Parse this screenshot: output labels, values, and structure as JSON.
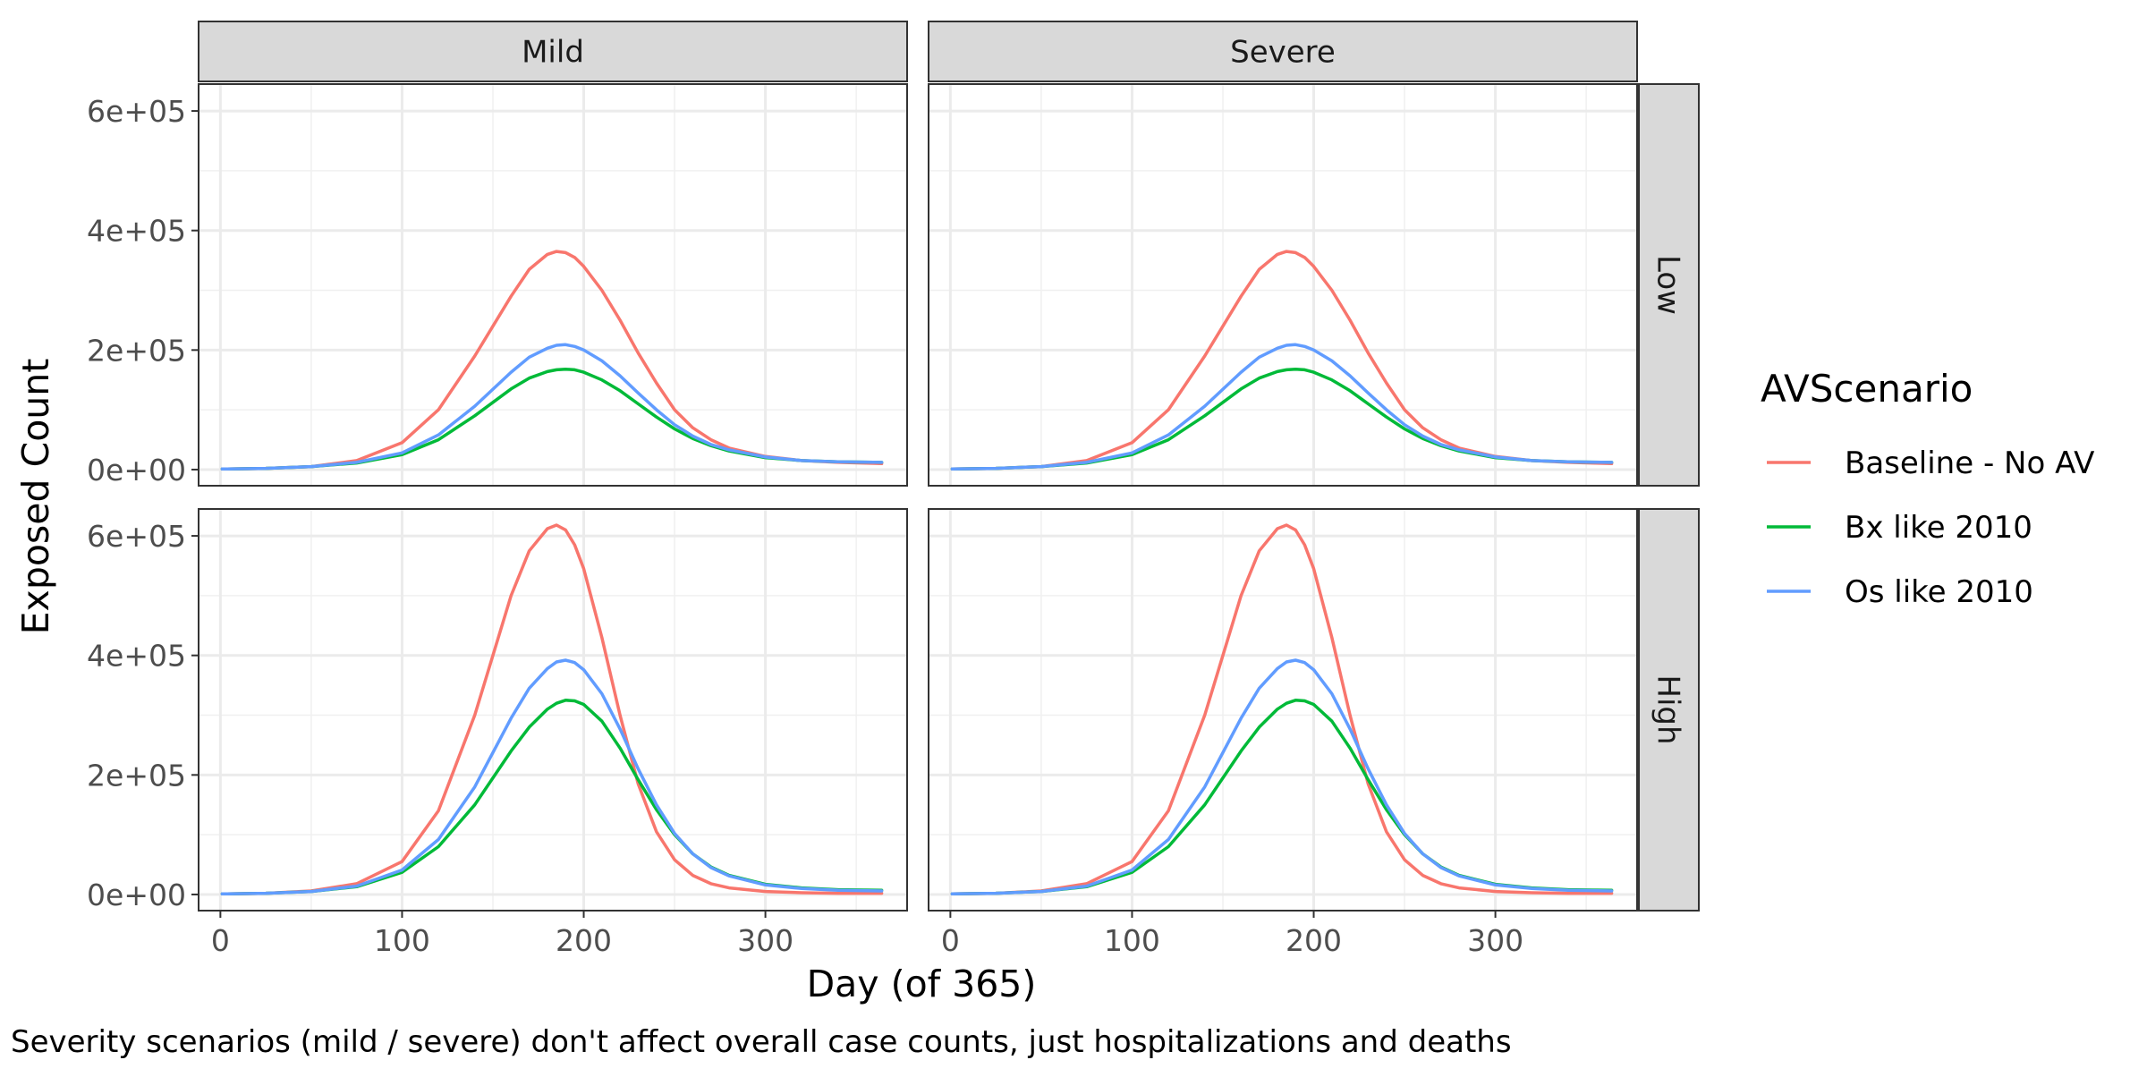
{
  "chart_data": {
    "type": "line",
    "xlabel": "Day (of 365)",
    "ylabel": "Exposed Count",
    "caption": "Severity scenarios (mild / severe) don't affect overall case counts, just hospitalizations and deaths",
    "xlim": [
      -12,
      378
    ],
    "ylim": [
      -27000,
      645000
    ],
    "x_ticks": [
      0,
      100,
      200,
      300
    ],
    "x_tick_labels": [
      "0",
      "100",
      "200",
      "300"
    ],
    "y_ticks": [
      0,
      200000,
      400000,
      600000
    ],
    "y_tick_labels": [
      "0e+00",
      "2e+05",
      "4e+05",
      "6e+05"
    ],
    "grid": true,
    "column_facets": [
      "Mild",
      "Severe"
    ],
    "row_facets": [
      "Low",
      "High"
    ],
    "legend": {
      "title": "AVScenario",
      "position": "right",
      "entries": [
        "Baseline - No AV",
        "Bx like 2010",
        "Os like 2010"
      ]
    },
    "colors": {
      "Baseline - No AV": "#F8766D",
      "Bx like 2010": "#00BA38",
      "Os like 2010": "#619CFF"
    },
    "x": [
      1,
      25,
      50,
      75,
      100,
      120,
      140,
      160,
      170,
      180,
      185,
      190,
      195,
      200,
      210,
      220,
      230,
      240,
      250,
      260,
      270,
      280,
      300,
      320,
      340,
      364
    ],
    "panels": [
      {
        "col": "Mild",
        "row": "Low",
        "series": [
          {
            "name": "Baseline - No AV",
            "values": [
              1000,
              2000,
              5000,
              15000,
              45000,
              100000,
              190000,
              290000,
              335000,
              360000,
              365000,
              363000,
              355000,
              340000,
              300000,
              250000,
              195000,
              145000,
              100000,
              70000,
              50000,
              36000,
              22000,
              15000,
              12000,
              10000
            ]
          },
          {
            "name": "Bx like 2010",
            "values": [
              1000,
              2000,
              5000,
              11000,
              25000,
              50000,
              90000,
              135000,
              153000,
              164000,
              167000,
              168000,
              167000,
              163000,
              150000,
              132000,
              110000,
              88000,
              68000,
              52000,
              40000,
              31000,
              20000,
              15000,
              13000,
              12000
            ]
          },
          {
            "name": "Os like 2010",
            "values": [
              1000,
              2000,
              5000,
              12000,
              28000,
              58000,
              106000,
              163000,
              188000,
              203000,
              208000,
              209000,
              206000,
              200000,
              182000,
              157000,
              128000,
              100000,
              75000,
              56000,
              42000,
              33000,
              21000,
              15000,
              13000,
              12000
            ]
          }
        ]
      },
      {
        "col": "Severe",
        "row": "Low",
        "series": [
          {
            "name": "Baseline - No AV",
            "values": [
              1000,
              2000,
              5000,
              15000,
              45000,
              100000,
              190000,
              290000,
              335000,
              360000,
              365000,
              363000,
              355000,
              340000,
              300000,
              250000,
              195000,
              145000,
              100000,
              70000,
              50000,
              36000,
              22000,
              15000,
              12000,
              10000
            ]
          },
          {
            "name": "Bx like 2010",
            "values": [
              1000,
              2000,
              5000,
              11000,
              25000,
              50000,
              90000,
              135000,
              153000,
              164000,
              167000,
              168000,
              167000,
              163000,
              150000,
              132000,
              110000,
              88000,
              68000,
              52000,
              40000,
              31000,
              20000,
              15000,
              13000,
              12000
            ]
          },
          {
            "name": "Os like 2010",
            "values": [
              1000,
              2000,
              5000,
              12000,
              28000,
              58000,
              106000,
              163000,
              188000,
              203000,
              208000,
              209000,
              206000,
              200000,
              182000,
              157000,
              128000,
              100000,
              75000,
              56000,
              42000,
              33000,
              21000,
              15000,
              13000,
              12000
            ]
          }
        ]
      },
      {
        "col": "Mild",
        "row": "High",
        "series": [
          {
            "name": "Baseline - No AV",
            "values": [
              1000,
              2000,
              6000,
              18000,
              55000,
              140000,
              300000,
              500000,
              575000,
              612000,
              618000,
              610000,
              585000,
              545000,
              430000,
              300000,
              185000,
              105000,
              58000,
              32000,
              18000,
              11000,
              5000,
              3000,
              2000,
              2000
            ]
          },
          {
            "name": "Bx like 2010",
            "values": [
              1000,
              2000,
              5000,
              13000,
              37000,
              80000,
              150000,
              240000,
              280000,
              310000,
              320000,
              325000,
              324000,
              318000,
              290000,
              245000,
              192000,
              142000,
              100000,
              68000,
              46000,
              32000,
              17000,
              11000,
              8000,
              7000
            ]
          },
          {
            "name": "Os like 2010",
            "values": [
              1000,
              2000,
              5000,
              14000,
              41000,
              92000,
              180000,
              295000,
              345000,
              378000,
              389000,
              392000,
              388000,
              376000,
              336000,
              277000,
              210000,
              150000,
              102000,
              68000,
              45000,
              31000,
              16000,
              10000,
              7000,
              6000
            ]
          }
        ]
      },
      {
        "col": "Severe",
        "row": "High",
        "series": [
          {
            "name": "Baseline - No AV",
            "values": [
              1000,
              2000,
              6000,
              18000,
              55000,
              140000,
              300000,
              500000,
              575000,
              612000,
              618000,
              610000,
              585000,
              545000,
              430000,
              300000,
              185000,
              105000,
              58000,
              32000,
              18000,
              11000,
              5000,
              3000,
              2000,
              2000
            ]
          },
          {
            "name": "Bx like 2010",
            "values": [
              1000,
              2000,
              5000,
              13000,
              37000,
              80000,
              150000,
              240000,
              280000,
              310000,
              320000,
              325000,
              324000,
              318000,
              290000,
              245000,
              192000,
              142000,
              100000,
              68000,
              46000,
              32000,
              17000,
              11000,
              8000,
              7000
            ]
          },
          {
            "name": "Os like 2010",
            "values": [
              1000,
              2000,
              5000,
              14000,
              41000,
              92000,
              180000,
              295000,
              345000,
              378000,
              389000,
              392000,
              388000,
              376000,
              336000,
              277000,
              210000,
              150000,
              102000,
              68000,
              45000,
              31000,
              16000,
              10000,
              7000,
              6000
            ]
          }
        ]
      }
    ]
  }
}
